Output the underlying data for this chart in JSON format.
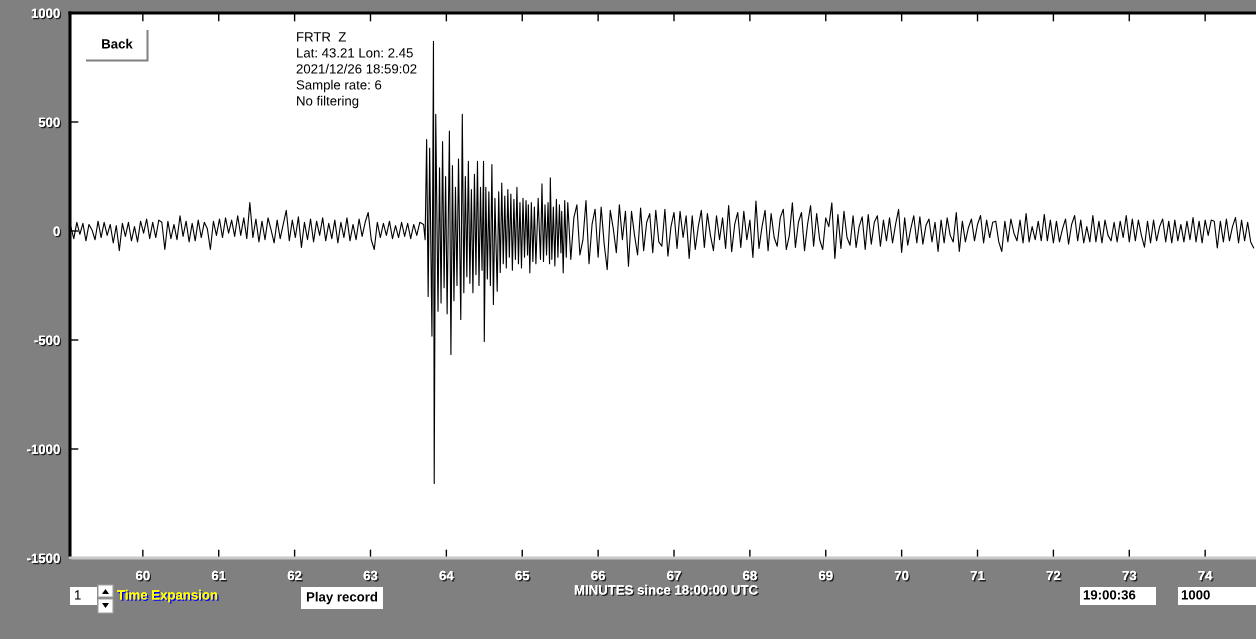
{
  "chart_data": {
    "type": "line",
    "title": "FRTR  Z",
    "annotations": [
      "Lat: 43.21 Lon: 2.45",
      "2021/12/26 18:59:02",
      "Sample rate: 6",
      "No filtering",
      "Back",
      "1",
      "Time Expansion",
      "Play record",
      "19:00:36",
      "1000"
    ],
    "xlabel": "MINUTES since 18:00:00 UTC",
    "x": [
      59.05,
      59.09,
      59.13,
      59.17,
      59.21,
      59.25,
      59.29,
      59.33,
      59.37,
      59.41,
      59.45,
      59.49,
      59.53,
      59.57,
      59.61,
      59.65,
      59.69,
      59.73,
      59.77,
      59.81,
      59.85,
      59.89,
      59.93,
      59.97,
      60.01,
      60.05,
      60.09,
      60.13,
      60.17,
      60.21,
      60.25,
      60.29,
      60.33,
      60.37,
      60.41,
      60.45,
      60.49,
      60.53,
      60.57,
      60.61,
      60.65,
      60.69,
      60.73,
      60.77,
      60.81,
      60.85,
      60.89,
      60.93,
      60.97,
      61.01,
      61.05,
      61.09,
      61.13,
      61.17,
      61.21,
      61.25,
      61.29,
      61.33,
      61.37,
      61.41,
      61.45,
      61.49,
      61.53,
      61.57,
      61.61,
      61.65,
      61.69,
      61.73,
      61.77,
      61.81,
      61.85,
      61.89,
      61.93,
      61.97,
      62.01,
      62.05,
      62.09,
      62.13,
      62.17,
      62.21,
      62.25,
      62.29,
      62.33,
      62.37,
      62.41,
      62.45,
      62.49,
      62.53,
      62.57,
      62.61,
      62.65,
      62.69,
      62.73,
      62.77,
      62.81,
      62.85,
      62.89,
      62.93,
      62.97,
      63.01,
      63.05,
      63.09,
      63.13,
      63.17,
      63.21,
      63.25,
      63.29,
      63.33,
      63.37,
      63.41,
      63.45,
      63.49,
      63.53,
      63.57,
      63.61,
      63.65,
      63.7,
      63.72,
      63.74,
      63.76,
      63.78,
      63.81,
      63.83,
      63.84,
      63.86,
      63.89,
      63.91,
      63.93,
      63.95,
      63.97,
      63.99,
      64.01,
      64.04,
      64.06,
      64.08,
      64.1,
      64.12,
      64.14,
      64.16,
      64.19,
      64.21,
      64.23,
      64.25,
      64.27,
      64.29,
      64.31,
      64.33,
      64.35,
      64.37,
      64.39,
      64.41,
      64.43,
      64.45,
      64.47,
      64.49,
      64.5,
      64.52,
      64.54,
      64.56,
      64.58,
      64.6,
      64.62,
      64.64,
      64.67,
      64.69,
      64.71,
      64.73,
      64.75,
      64.77,
      64.79,
      64.81,
      64.83,
      64.85,
      64.87,
      64.89,
      64.91,
      64.93,
      64.95,
      64.97,
      64.99,
      65.01,
      65.03,
      65.05,
      65.07,
      65.08,
      65.1,
      65.12,
      65.14,
      65.16,
      65.18,
      65.21,
      65.24,
      65.26,
      65.28,
      65.3,
      65.32,
      65.34,
      65.36,
      65.37,
      65.39,
      65.41,
      65.43,
      65.45,
      65.47,
      65.49,
      65.51,
      65.52,
      65.54,
      65.56,
      65.58,
      65.6,
      65.64,
      65.68,
      65.72,
      65.76,
      65.8,
      65.84,
      65.88,
      65.92,
      65.96,
      66.0,
      66.04,
      66.08,
      66.12,
      66.16,
      66.2,
      66.24,
      66.28,
      66.32,
      66.36,
      66.4,
      66.44,
      66.48,
      66.52,
      66.56,
      66.6,
      66.64,
      66.68,
      66.72,
      66.76,
      66.8,
      66.84,
      66.88,
      66.92,
      66.96,
      67.0,
      67.04,
      67.08,
      67.12,
      67.16,
      67.2,
      67.24,
      67.28,
      67.32,
      67.36,
      67.4,
      67.44,
      67.48,
      67.52,
      67.56,
      67.6,
      67.64,
      67.68,
      67.72,
      67.76,
      67.8,
      67.84,
      67.88,
      67.92,
      67.96,
      68.0,
      68.04,
      68.08,
      68.12,
      68.16,
      68.2,
      68.24,
      68.28,
      68.32,
      68.36,
      68.4,
      68.44,
      68.48,
      68.52,
      68.56,
      68.6,
      68.64,
      68.68,
      68.72,
      68.76,
      68.8,
      68.84,
      68.88,
      68.92,
      68.96,
      69.0,
      69.04,
      69.08,
      69.12,
      69.16,
      69.2,
      69.24,
      69.28,
      69.32,
      69.36,
      69.4,
      69.44,
      69.48,
      69.52,
      69.56,
      69.6,
      69.64,
      69.68,
      69.72,
      69.76,
      69.8,
      69.84,
      69.88,
      69.92,
      69.96,
      70.0,
      70.04,
      70.08,
      70.12,
      70.16,
      70.2,
      70.24,
      70.28,
      70.32,
      70.36,
      70.4,
      70.44,
      70.48,
      70.52,
      70.56,
      70.6,
      70.64,
      70.68,
      70.72,
      70.76,
      70.8,
      70.84,
      70.88,
      70.92,
      70.96,
      71.0,
      71.04,
      71.08,
      71.12,
      71.16,
      71.2,
      71.24,
      71.28,
      71.32,
      71.36,
      71.4,
      71.44,
      71.48,
      71.52,
      71.56,
      71.6,
      71.64,
      71.68,
      71.72,
      71.76,
      71.8,
      71.84,
      71.88,
      71.92,
      71.96,
      72.0,
      72.04,
      72.08,
      72.12,
      72.16,
      72.2,
      72.24,
      72.28,
      72.32,
      72.36,
      72.4,
      72.44,
      72.48,
      72.52,
      72.56,
      72.6,
      72.64,
      72.68,
      72.72,
      72.76,
      72.8,
      72.84,
      72.88,
      72.92,
      72.96,
      73.0,
      73.04,
      73.08,
      73.12,
      73.16,
      73.2,
      73.24,
      73.28,
      73.32,
      73.36,
      73.4,
      73.44,
      73.48,
      73.52,
      73.56,
      73.6,
      73.64,
      73.68,
      73.72,
      73.76,
      73.8,
      73.84,
      73.88,
      73.92,
      73.96,
      74.0,
      74.04,
      74.08,
      74.12,
      74.16,
      74.2,
      74.24,
      74.28,
      74.32,
      74.36,
      74.4,
      74.44,
      74.48,
      74.52,
      74.56,
      74.6,
      74.64
    ],
    "series": [
      {
        "color": "#000000",
        "values": [
          20,
          -35,
          40,
          -15,
          35,
          -45,
          30,
          5,
          -40,
          45,
          -30,
          40,
          -20,
          30,
          -55,
          25,
          -90,
          35,
          -25,
          40,
          -45,
          20,
          -50,
          45,
          -10,
          55,
          -35,
          40,
          -30,
          50,
          40,
          -85,
          45,
          -35,
          30,
          -40,
          70,
          -25,
          45,
          -50,
          35,
          -45,
          50,
          -30,
          40,
          10,
          -85,
          45,
          -20,
          55,
          -30,
          60,
          -10,
          50,
          -25,
          70,
          -20,
          60,
          -35,
          130,
          -30,
          55,
          -50,
          45,
          -40,
          60,
          5,
          -55,
          50,
          -35,
          30,
          95,
          -45,
          50,
          -30,
          65,
          -75,
          40,
          -40,
          55,
          -50,
          45,
          -20,
          60,
          -45,
          35,
          -35,
          50,
          -55,
          40,
          -30,
          60,
          -45,
          30,
          -40,
          55,
          -25,
          40,
          85,
          -40,
          -85,
          40,
          -30,
          35,
          -20,
          45,
          -35,
          25,
          -30,
          40,
          -25,
          35,
          -35,
          30,
          -20,
          40,
          30,
          -40,
          420,
          -300,
          380,
          -482,
          870,
          -1158,
          535,
          -368,
          290,
          -330,
          410,
          -260,
          250,
          -380,
          458,
          -566,
          300,
          -320,
          200,
          -250,
          330,
          -406,
          535,
          -283,
          250,
          -210,
          320,
          -240,
          190,
          -283,
          260,
          -200,
          320,
          -250,
          200,
          -180,
          320,
          -507,
          200,
          -220,
          180,
          -250,
          305,
          -337,
          150,
          -276,
          180,
          -190,
          220,
          -150,
          160,
          -170,
          190,
          -120,
          170,
          -180,
          145,
          -130,
          200,
          -150,
          130,
          -170,
          150,
          -120,
          140,
          -110,
          120,
          -192,
          130,
          -140,
          110,
          -150,
          150,
          -130,
          216,
          -140,
          120,
          -110,
          130,
          -150,
          244,
          -130,
          110,
          -160,
          145,
          -120,
          120,
          -100,
          90,
          -192,
          140,
          -120,
          130,
          -130,
          60,
          120,
          -110,
          -40,
          140,
          -150,
          30,
          100,
          -120,
          110,
          -60,
          -177,
          95,
          10,
          -100,
          120,
          -40,
          90,
          -161,
          90,
          -20,
          -110,
          105,
          -90,
          40,
          80,
          -100,
          95,
          -50,
          -70,
          100,
          -115,
          20,
          85,
          -80,
          90,
          -30,
          70,
          -126,
          70,
          -85,
          20,
          95,
          -75,
          80,
          -20,
          -90,
          70,
          -40,
          60,
          -80,
          117,
          -95,
          30,
          85,
          -75,
          90,
          -40,
          50,
          -121,
          137,
          -80,
          20,
          95,
          -90,
          80,
          -30,
          -70,
          60,
          100,
          -85,
          -20,
          129,
          -75,
          40,
          85,
          -90,
          30,
          117,
          -70,
          80,
          -40,
          -85,
          60,
          20,
          129,
          -126,
          75,
          -80,
          90,
          -30,
          -65,
          70,
          -75,
          20,
          65,
          -85,
          75,
          -60,
          40,
          70,
          -70,
          50,
          -45,
          60,
          -55,
          30,
          99,
          -98,
          60,
          -65,
          10,
          70,
          -55,
          65,
          -60,
          25,
          55,
          -50,
          40,
          -94,
          50,
          -55,
          60,
          -20,
          -50,
          85,
          -94,
          45,
          -50,
          15,
          55,
          -45,
          30,
          71,
          -55,
          50,
          -30,
          40,
          45,
          -50,
          -94,
          45,
          -50,
          55,
          -10,
          -45,
          50,
          -55,
          80,
          -50,
          20,
          -40,
          45,
          -45,
          76,
          -45,
          50,
          -55,
          45,
          -50,
          10,
          55,
          -60,
          30,
          71,
          -45,
          50,
          -55,
          20,
          -50,
          71,
          -50,
          45,
          -55,
          50,
          -20,
          -45,
          40,
          -50,
          45,
          -30,
          71,
          -50,
          55,
          -45,
          50,
          -20,
          -74,
          45,
          -55,
          50,
          -45,
          20,
          55,
          -50,
          45,
          -55,
          50,
          -45,
          30,
          -50,
          45,
          -40,
          62,
          -50,
          45,
          -55,
          50,
          -20,
          50,
          45,
          -78,
          45,
          -50,
          55,
          -45,
          20,
          62,
          -55,
          50,
          -45,
          40,
          -50,
          -78
        ]
      }
    ],
    "xlim": [
      59.04,
      74.67
    ],
    "xticks": [
      60,
      61,
      62,
      63,
      64,
      65,
      66,
      67,
      68,
      69,
      70,
      71,
      72,
      73,
      74
    ],
    "ylim": [
      -1500,
      1000
    ],
    "yticks": [
      -1500,
      -1000,
      -500,
      0,
      500,
      1000
    ]
  }
}
